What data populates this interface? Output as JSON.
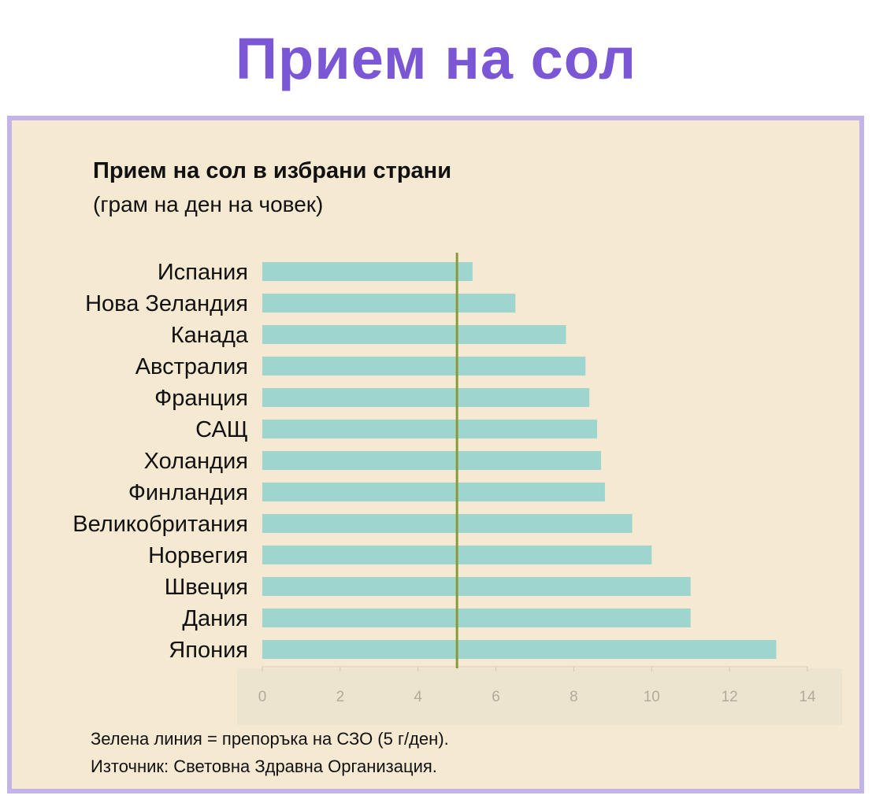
{
  "page_title": "Прием на сол",
  "chart_data": {
    "type": "bar",
    "orientation": "horizontal",
    "title": "Прием на сол в избрани страни",
    "subtitle": "(грам на ден на човек)",
    "categories": [
      "Испания",
      "Нова Зеландия",
      "Канада",
      "Австралия",
      "Франция",
      "САЩ",
      "Холандия",
      "Финландия",
      "Великобритания",
      "Норвегия",
      "Швеция",
      "Дания",
      "Япония"
    ],
    "values": [
      5.4,
      6.5,
      7.8,
      8.3,
      8.4,
      8.6,
      8.7,
      8.8,
      9.5,
      10.0,
      11.0,
      11.0,
      13.2
    ],
    "xlim": [
      0,
      14
    ],
    "x_ticks": [
      0,
      2,
      4,
      6,
      8,
      10,
      12,
      14
    ],
    "reference_line": {
      "value": 5,
      "color": "#8a9a3a"
    },
    "bar_color": "#9fd5cf",
    "grid": false
  },
  "footnotes": {
    "line1": "Зелена линия = препоръка на СЗО (5 г/ден).",
    "line2": "Източник: Световна Здравна Организация."
  },
  "colors": {
    "title": "#7b57d6",
    "panel_bg": "#f5e9d2",
    "panel_border": "#c2b3e8"
  }
}
